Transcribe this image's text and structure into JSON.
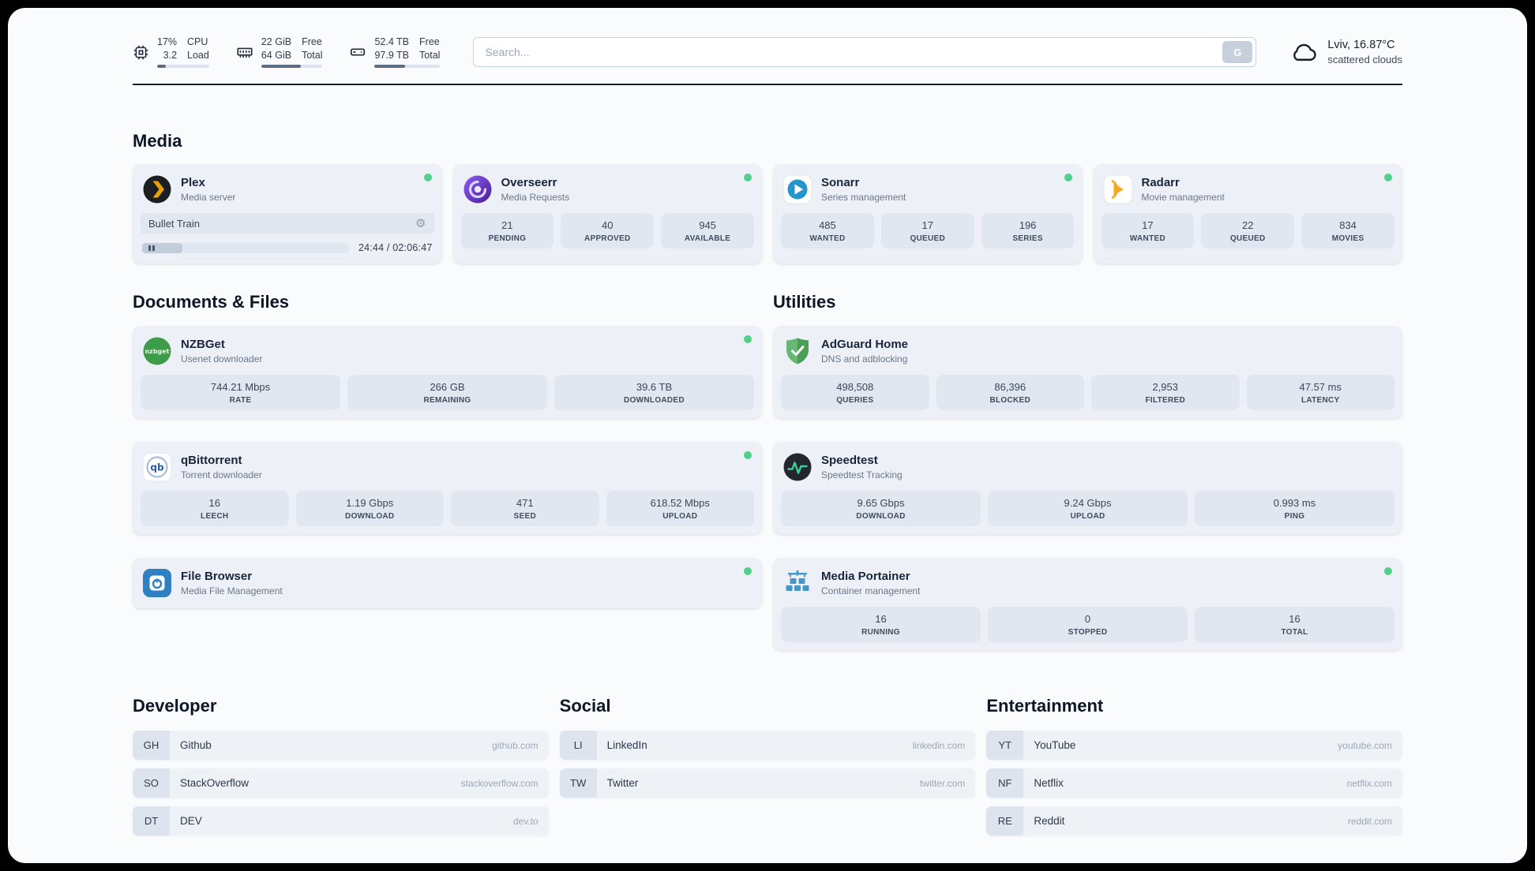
{
  "colors": {
    "page_background": "#fafbfd",
    "card_background": "#edf1f7",
    "stat_background": "#e1e7f0",
    "status_online": "#4ed189",
    "divider": "#131c29",
    "plex_accent": "#e8a10c",
    "adguard_green": "#4a9e55",
    "speedtest_line": "#35d399"
  },
  "icons": {
    "gear": "⚙"
  },
  "header": {
    "cpu": {
      "icon": "cpu-icon",
      "percent": "17%",
      "load": "3.2",
      "label_top": "CPU",
      "label_bottom": "Load",
      "bar_pct": 17
    },
    "memory": {
      "icon": "memory-icon",
      "free": "22 GiB",
      "total": "64 GiB",
      "label_top": "Free",
      "label_bottom": "Total",
      "bar_pct": 65
    },
    "disk": {
      "icon": "disk-icon",
      "free": "52.4 TB",
      "total": "97.9 TB",
      "label_top": "Free",
      "label_bottom": "Total",
      "bar_pct": 46
    },
    "search": {
      "placeholder": "Search...",
      "button_label": "G"
    },
    "weather": {
      "icon": "cloud-icon",
      "location": "Lviv, 16.87°C",
      "condition": "scattered clouds"
    }
  },
  "media": {
    "title": "Media",
    "plex": {
      "icon": "plex-icon",
      "title": "Plex",
      "subtitle": "Media server",
      "status": "online",
      "now_playing": {
        "track": "Bullet Train",
        "time_display": "24:44 / 02:06:47",
        "elapsed": "24:44",
        "duration": "02:06:47",
        "progress_pct": 19.5
      }
    },
    "overseerr": {
      "icon": "overseerr-icon",
      "title": "Overseerr",
      "subtitle": "Media Requests",
      "status": "online",
      "stats": [
        {
          "value": "21",
          "label": "PENDING"
        },
        {
          "value": "40",
          "label": "APPROVED"
        },
        {
          "value": "945",
          "label": "AVAILABLE"
        }
      ]
    },
    "sonarr": {
      "icon": "sonarr-icon",
      "title": "Sonarr",
      "subtitle": "Series management",
      "status": "online",
      "stats": [
        {
          "value": "485",
          "label": "WANTED"
        },
        {
          "value": "17",
          "label": "QUEUED"
        },
        {
          "value": "196",
          "label": "SERIES"
        }
      ]
    },
    "radarr": {
      "icon": "radarr-icon",
      "title": "Radarr",
      "subtitle": "Movie management",
      "status": "online",
      "stats": [
        {
          "value": "17",
          "label": "WANTED"
        },
        {
          "value": "22",
          "label": "QUEUED"
        },
        {
          "value": "834",
          "label": "MOVIES"
        }
      ]
    }
  },
  "documents": {
    "title": "Documents & Files",
    "nzbget": {
      "icon": "nzbget-icon",
      "title": "NZBGet",
      "subtitle": "Usenet downloader",
      "status": "online",
      "stats": [
        {
          "value": "744.21 Mbps",
          "label": "RATE"
        },
        {
          "value": "266 GB",
          "label": "REMAINING"
        },
        {
          "value": "39.6 TB",
          "label": "DOWNLOADED"
        }
      ]
    },
    "qbittorrent": {
      "icon": "qbittorrent-icon",
      "title": "qBittorrent",
      "subtitle": "Torrent downloader",
      "status": "online",
      "stats": [
        {
          "value": "16",
          "label": "LEECH"
        },
        {
          "value": "1.19 Gbps",
          "label": "DOWNLOAD"
        },
        {
          "value": "471",
          "label": "SEED"
        },
        {
          "value": "618.52 Mbps",
          "label": "UPLOAD"
        }
      ]
    },
    "filebrowser": {
      "icon": "filebrowser-icon",
      "title": "File Browser",
      "subtitle": "Media File Management",
      "status": "online"
    }
  },
  "utilities": {
    "title": "Utilities",
    "adguard": {
      "icon": "adguard-icon",
      "title": "AdGuard Home",
      "subtitle": "DNS and adblocking",
      "stats": [
        {
          "value": "498,508",
          "label": "QUERIES"
        },
        {
          "value": "86,396",
          "label": "BLOCKED"
        },
        {
          "value": "2,953",
          "label": "FILTERED"
        },
        {
          "value": "47.57 ms",
          "label": "LATENCY"
        }
      ]
    },
    "speedtest": {
      "icon": "speedtest-icon",
      "title": "Speedtest",
      "subtitle": "Speedtest Tracking",
      "stats": [
        {
          "value": "9.65 Gbps",
          "label": "DOWNLOAD"
        },
        {
          "value": "9.24 Gbps",
          "label": "UPLOAD"
        },
        {
          "value": "0.993 ms",
          "label": "PING"
        }
      ]
    },
    "portainer": {
      "icon": "portainer-icon",
      "title": "Media Portainer",
      "subtitle": "Container management",
      "status": "online",
      "stats": [
        {
          "value": "16",
          "label": "RUNNING"
        },
        {
          "value": "0",
          "label": "STOPPED"
        },
        {
          "value": "16",
          "label": "TOTAL"
        }
      ]
    }
  },
  "bookmarks": {
    "developer": {
      "title": "Developer",
      "items": [
        {
          "abbr": "GH",
          "name": "Github",
          "domain": "github.com"
        },
        {
          "abbr": "SO",
          "name": "StackOverflow",
          "domain": "stackoverflow.com"
        },
        {
          "abbr": "DT",
          "name": "DEV",
          "domain": "dev.to"
        }
      ]
    },
    "social": {
      "title": "Social",
      "items": [
        {
          "abbr": "LI",
          "name": "LinkedIn",
          "domain": "linkedin.com"
        },
        {
          "abbr": "TW",
          "name": "Twitter",
          "domain": "twitter.com"
        }
      ]
    },
    "entertainment": {
      "title": "Entertainment",
      "items": [
        {
          "abbr": "YT",
          "name": "YouTube",
          "domain": "youtube.com"
        },
        {
          "abbr": "NF",
          "name": "Netflix",
          "domain": "netflix.com"
        },
        {
          "abbr": "RE",
          "name": "Reddit",
          "domain": "reddit.com"
        }
      ]
    }
  }
}
